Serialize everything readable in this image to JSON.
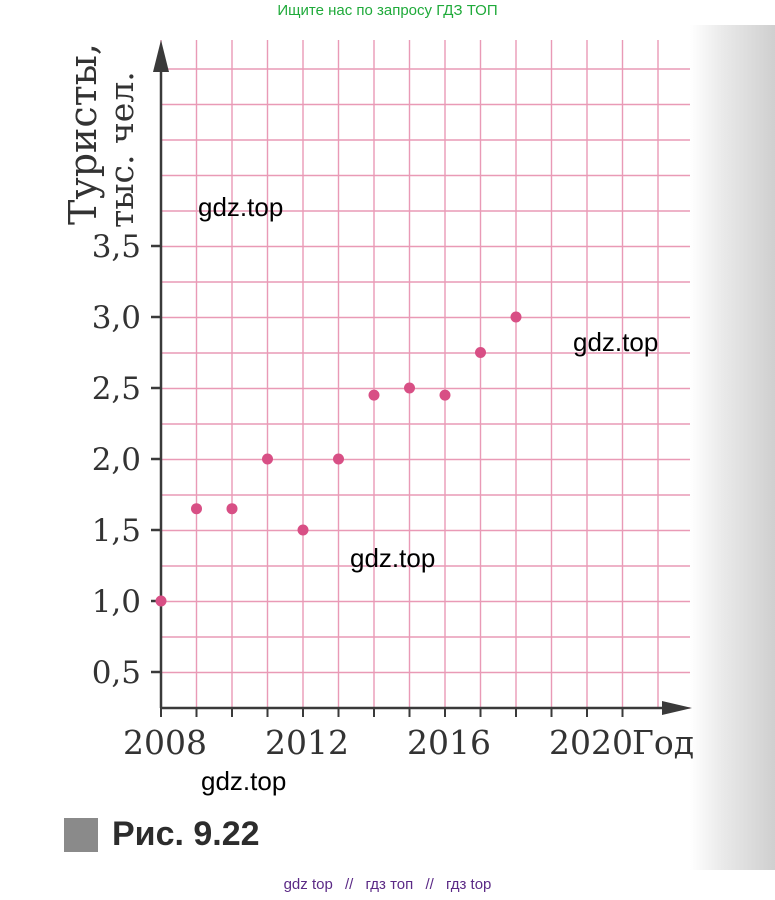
{
  "header_note": "Ищите нас по запросу ГДЗ ТОП",
  "footer_links": [
    "gdz top",
    "//",
    "гдз топ",
    "//",
    "гдз top"
  ],
  "watermarks": [
    "gdz.top",
    "gdz.top",
    "gdz.top",
    "gdz.top"
  ],
  "caption": "Рис. 9.22",
  "colors": {
    "grid": "#e99ab6",
    "point": "#d84f85",
    "axis": "#3a3a3a"
  },
  "chart_data": {
    "type": "scatter",
    "ylabel_line1": "Туристы,",
    "ylabel_line2": "тыс. чел.",
    "xlabel": "Год",
    "x_ticks": [
      "2008",
      "2012",
      "2016",
      "2020"
    ],
    "y_ticks": [
      "0,5",
      "1,0",
      "1,5",
      "2,0",
      "2,5",
      "3,0",
      "3,5"
    ],
    "xlim": [
      2008,
      2022
    ],
    "ylim": [
      0,
      4.5
    ],
    "grid": true,
    "points": [
      {
        "x": 2008,
        "y": 1.0
      },
      {
        "x": 2009,
        "y": 1.65
      },
      {
        "x": 2010,
        "y": 1.65
      },
      {
        "x": 2011,
        "y": 2.0
      },
      {
        "x": 2012,
        "y": 1.5
      },
      {
        "x": 2013,
        "y": 2.0
      },
      {
        "x": 2014,
        "y": 2.45
      },
      {
        "x": 2015,
        "y": 2.5
      },
      {
        "x": 2016,
        "y": 2.45
      },
      {
        "x": 2017,
        "y": 2.75
      },
      {
        "x": 2018,
        "y": 3.0
      }
    ]
  }
}
